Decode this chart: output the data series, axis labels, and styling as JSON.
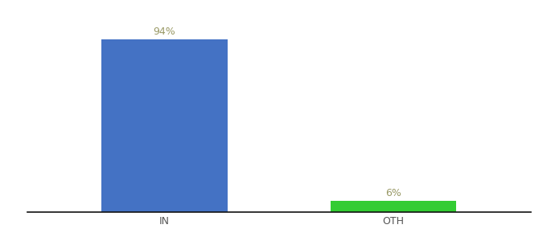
{
  "categories": [
    "IN",
    "OTH"
  ],
  "values": [
    94,
    6
  ],
  "bar_colors": [
    "#4472c4",
    "#33cc33"
  ],
  "label_texts": [
    "94%",
    "6%"
  ],
  "background_color": "#ffffff",
  "figsize": [
    6.8,
    3.0
  ],
  "dpi": 100,
  "ylim": [
    0,
    105
  ],
  "bar_width": 0.55,
  "tick_fontsize": 9,
  "label_fontsize": 9,
  "label_color": "#999966",
  "x_positions": [
    0,
    1
  ]
}
